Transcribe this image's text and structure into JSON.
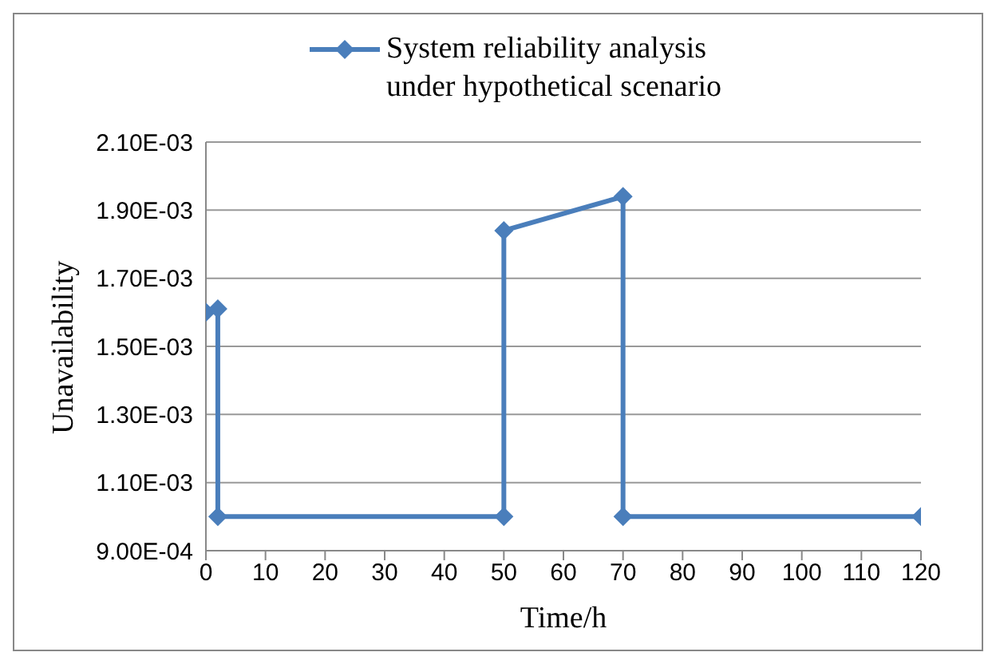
{
  "chart_data": {
    "type": "line",
    "xlabel": "Time/h",
    "ylabel": "Unavailability",
    "x": [
      0,
      2,
      2,
      50,
      50,
      70,
      70,
      120
    ],
    "series": [
      {
        "name": "System reliability analysis under hypothetical scenario",
        "color": "#4a7ebb",
        "values": [
          0.0016,
          0.00161,
          0.001,
          0.001,
          0.00184,
          0.00194,
          0.001,
          0.001
        ]
      }
    ],
    "xlim": [
      0,
      120
    ],
    "xticks": [
      0,
      10,
      20,
      30,
      40,
      50,
      60,
      70,
      80,
      90,
      100,
      110,
      120
    ],
    "ylim": [
      0.0009,
      0.0021
    ],
    "yticks": [
      {
        "value": 0.0009,
        "label": "9.00E-04"
      },
      {
        "value": 0.0011,
        "label": "1.10E-03"
      },
      {
        "value": 0.0013,
        "label": "1.30E-03"
      },
      {
        "value": 0.0015,
        "label": "1.50E-03"
      },
      {
        "value": 0.0017,
        "label": "1.70E-03"
      },
      {
        "value": 0.0019,
        "label": "1.90E-03"
      },
      {
        "value": 0.0021,
        "label": "2.10E-03"
      }
    ],
    "grid": "y",
    "legend": "top",
    "marker": "diamond",
    "line_style": "solid"
  }
}
